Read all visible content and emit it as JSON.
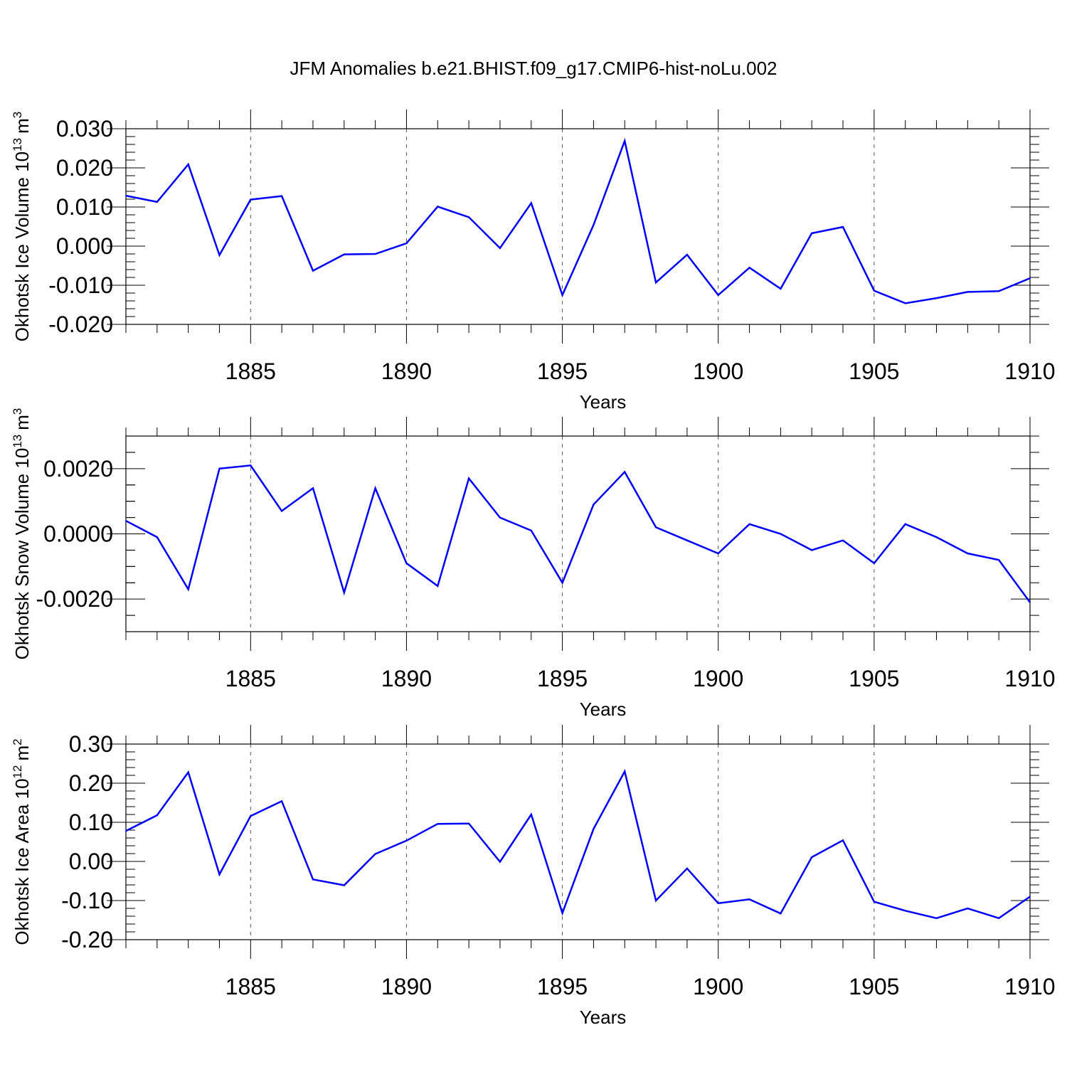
{
  "title": "JFM Anomalies b.e21.BHIST.f09_g17.CMIP6-hist-noLu.002",
  "line_color": "#0000ff",
  "grid_color": "#555555",
  "chart_data": [
    {
      "type": "line",
      "name": "ice-volume",
      "xlabel": "Years",
      "ylabel_text": "Okhotsk Ice Volume 10",
      "ylabel_exp": "13",
      "ylabel_unit": "m",
      "ylabel_unit_exp": "3",
      "xlim": [
        1881,
        1910
      ],
      "ylim": [
        -0.02,
        0.03
      ],
      "x_ticks": [
        1885,
        1890,
        1895,
        1900,
        1905,
        1910
      ],
      "x_tick_labels": [
        "1885",
        "1890",
        "1895",
        "1900",
        "1905",
        "1910"
      ],
      "y_ticks": [
        -0.02,
        -0.01,
        0.0,
        0.01,
        0.02,
        0.03
      ],
      "y_tick_labels": [
        "-0.020",
        "-0.010",
        "0.000",
        "0.010",
        "0.020",
        "0.030"
      ],
      "y_minor_step": 0.002,
      "x": [
        1881,
        1882,
        1883,
        1884,
        1885,
        1886,
        1887,
        1888,
        1889,
        1890,
        1891,
        1892,
        1893,
        1894,
        1895,
        1896,
        1897,
        1898,
        1899,
        1900,
        1901,
        1902,
        1903,
        1904,
        1905,
        1906,
        1907,
        1908,
        1909,
        1910
      ],
      "values": [
        0.0129,
        0.0113,
        0.0209,
        -0.0023,
        0.0119,
        0.0128,
        -0.0063,
        -0.0021,
        -0.002,
        0.0007,
        0.0101,
        0.0074,
        -0.0005,
        0.011,
        -0.0125,
        0.0054,
        0.0269,
        -0.0093,
        -0.0022,
        -0.0125,
        -0.0055,
        -0.0109,
        0.0033,
        0.0049,
        -0.0114,
        -0.0146,
        -0.0133,
        -0.0117,
        -0.0115,
        -0.0082
      ]
    },
    {
      "type": "line",
      "name": "snow-volume",
      "xlabel": "Years",
      "ylabel_text": "Okhotsk Snow Volume 10",
      "ylabel_exp": "13",
      "ylabel_unit": "m",
      "ylabel_unit_exp": "3",
      "xlim": [
        1881,
        1910
      ],
      "ylim": [
        -0.003,
        0.003
      ],
      "x_ticks": [
        1885,
        1890,
        1895,
        1900,
        1905,
        1910
      ],
      "x_tick_labels": [
        "1885",
        "1890",
        "1895",
        "1900",
        "1905",
        "1910"
      ],
      "y_ticks": [
        -0.002,
        0.0,
        0.002
      ],
      "y_tick_labels": [
        "-0.0020",
        "0.0000",
        "0.0020"
      ],
      "y_minor_step": 0.0005,
      "x": [
        1881,
        1882,
        1883,
        1884,
        1885,
        1886,
        1887,
        1888,
        1889,
        1890,
        1891,
        1892,
        1893,
        1894,
        1895,
        1896,
        1897,
        1898,
        1899,
        1900,
        1901,
        1902,
        1903,
        1904,
        1905,
        1906,
        1907,
        1908,
        1909,
        1910
      ],
      "values": [
        0.0004,
        -0.0001,
        -0.0017,
        0.002,
        0.0021,
        0.0007,
        0.0014,
        -0.0018,
        0.0014,
        -0.0009,
        -0.0016,
        0.0017,
        0.0005,
        0.0001,
        -0.0015,
        0.0009,
        0.0019,
        0.0002,
        -0.0002,
        -0.0006,
        0.0003,
        0.0,
        -0.0005,
        -0.0002,
        -0.0009,
        0.0003,
        -0.0001,
        -0.0006,
        -0.0008,
        -0.0021
      ]
    },
    {
      "type": "line",
      "name": "ice-area",
      "xlabel": "Years",
      "ylabel_text": "Okhotsk Ice Area 10",
      "ylabel_exp": "12",
      "ylabel_unit": "m",
      "ylabel_unit_exp": "2",
      "xlim": [
        1881,
        1910
      ],
      "ylim": [
        -0.2,
        0.3
      ],
      "x_ticks": [
        1885,
        1890,
        1895,
        1900,
        1905,
        1910
      ],
      "x_tick_labels": [
        "1885",
        "1890",
        "1895",
        "1900",
        "1905",
        "1910"
      ],
      "y_ticks": [
        -0.2,
        -0.1,
        0.0,
        0.1,
        0.2,
        0.3
      ],
      "y_tick_labels": [
        "-0.20",
        "-0.10",
        "0.00",
        "0.10",
        "0.20",
        "0.30"
      ],
      "y_minor_step": 0.02,
      "x": [
        1881,
        1882,
        1883,
        1884,
        1885,
        1886,
        1887,
        1888,
        1889,
        1890,
        1891,
        1892,
        1893,
        1894,
        1895,
        1896,
        1897,
        1898,
        1899,
        1900,
        1901,
        1902,
        1903,
        1904,
        1905,
        1906,
        1907,
        1908,
        1909,
        1910
      ],
      "values": [
        0.078,
        0.118,
        0.228,
        -0.033,
        0.116,
        0.154,
        -0.046,
        -0.061,
        0.019,
        0.053,
        0.096,
        0.097,
        -0.001,
        0.12,
        -0.132,
        0.083,
        0.23,
        -0.1,
        -0.018,
        -0.107,
        -0.097,
        -0.133,
        0.011,
        0.054,
        -0.103,
        -0.126,
        -0.145,
        -0.12,
        -0.145,
        -0.09
      ]
    }
  ]
}
